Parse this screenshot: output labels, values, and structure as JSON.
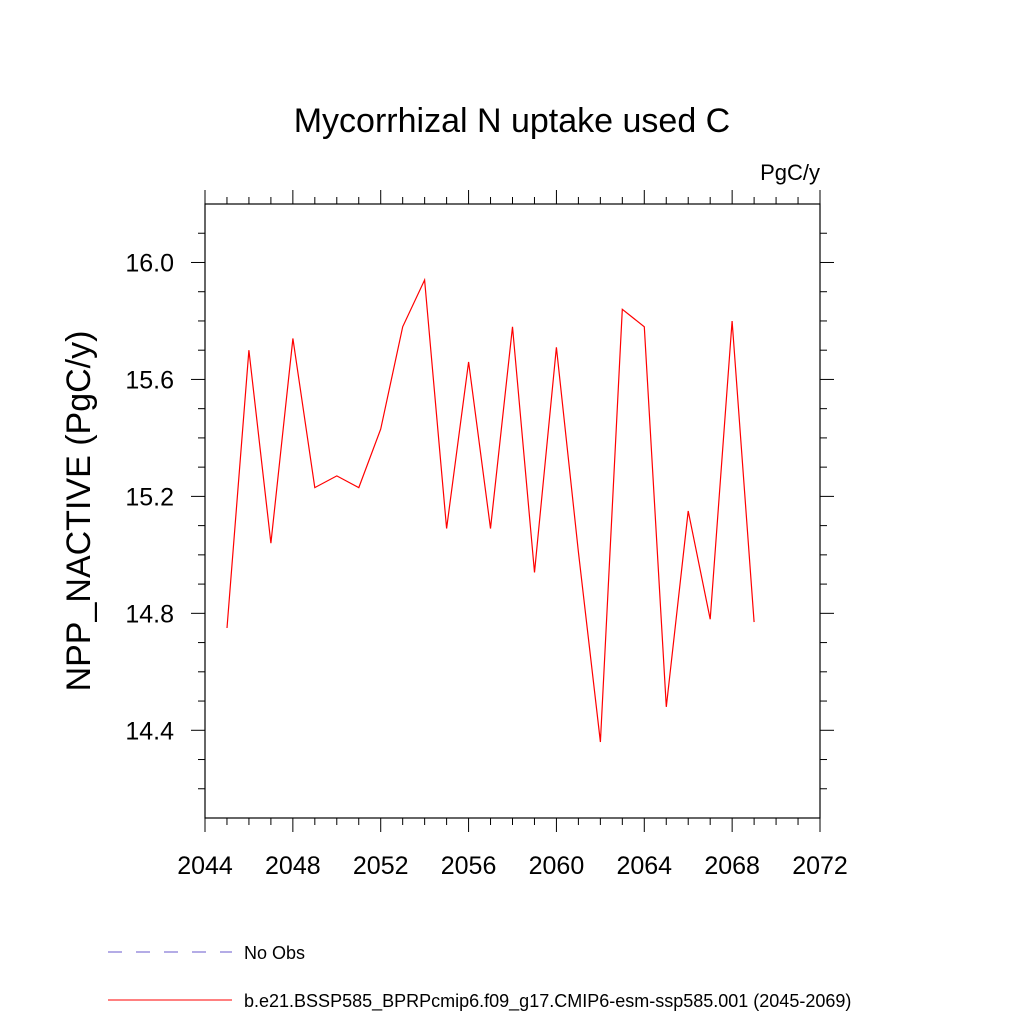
{
  "chart_data": {
    "type": "line",
    "title": "Mycorrhizal N uptake used C",
    "units_label": "PgC/y",
    "ylabel": "NPP_NACTIVE  (PgC/y)",
    "xlabel": "",
    "xlim": [
      2044,
      2072
    ],
    "ylim": [
      14.1,
      16.2
    ],
    "x_ticks": [
      2044,
      2048,
      2052,
      2056,
      2060,
      2064,
      2068,
      2072
    ],
    "x_tick_labels": [
      "2044",
      "2048",
      "2052",
      "2056",
      "2060",
      "2064",
      "2068",
      "2072"
    ],
    "y_ticks": [
      14.4,
      14.8,
      15.2,
      15.6,
      16.0
    ],
    "y_tick_labels": [
      "14.4",
      "14.8",
      "15.2",
      "15.6",
      "16.0"
    ],
    "grid": false,
    "legend_position": "bottom-left",
    "series": [
      {
        "name": "b.e21.BSSP585_BPRPcmip6.f09_g17.CMIP6-esm-ssp585.001 (2045-2069)",
        "color": "#ff0000",
        "dash": "solid",
        "x": [
          2045,
          2046,
          2047,
          2048,
          2049,
          2050,
          2051,
          2052,
          2053,
          2054,
          2055,
          2056,
          2057,
          2058,
          2059,
          2060,
          2061,
          2062,
          2063,
          2064,
          2065,
          2066,
          2067,
          2068,
          2069
        ],
        "y": [
          14.75,
          15.7,
          15.04,
          15.74,
          15.23,
          15.27,
          15.23,
          15.43,
          15.78,
          15.94,
          15.09,
          15.66,
          15.09,
          15.78,
          14.94,
          15.71,
          15.01,
          14.36,
          15.84,
          15.78,
          14.48,
          15.15,
          14.78,
          15.8,
          14.77
        ]
      }
    ],
    "legend": [
      {
        "label": "No Obs",
        "color": "#6a5acd",
        "dash": "dashed"
      },
      {
        "label": "b.e21.BSSP585_BPRPcmip6.f09_g17.CMIP6-esm-ssp585.001 (2045-2069)",
        "color": "#ff0000",
        "dash": "solid"
      }
    ]
  }
}
